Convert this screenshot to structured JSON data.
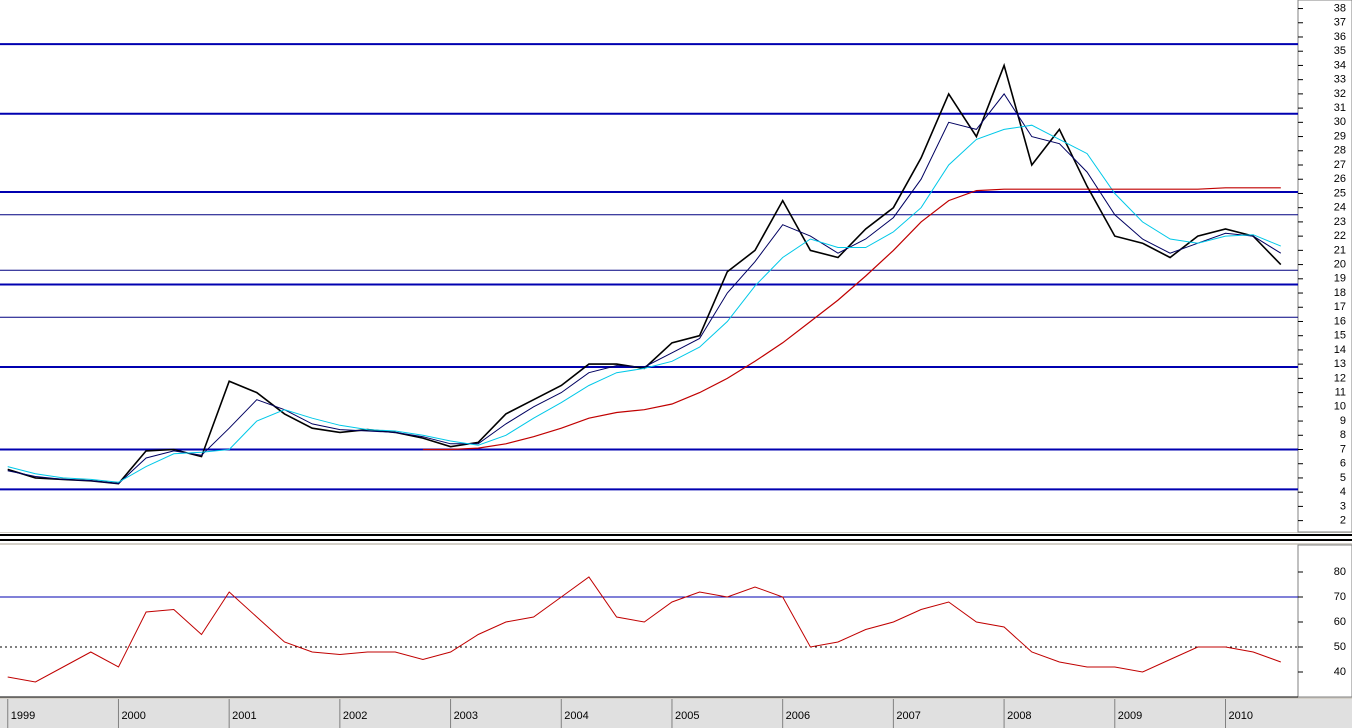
{
  "chart_data": [
    {
      "type": "line",
      "x": [
        1999.0,
        1999.25,
        1999.5,
        1999.75,
        2000.0,
        2000.25,
        2000.5,
        2000.75,
        2001.0,
        2001.25,
        2001.5,
        2001.75,
        2002.0,
        2002.25,
        2002.5,
        2002.75,
        2003.0,
        2003.25,
        2003.5,
        2003.75,
        2004.0,
        2004.25,
        2004.5,
        2004.75,
        2005.0,
        2005.25,
        2005.5,
        2005.75,
        2006.0,
        2006.25,
        2006.5,
        2006.75,
        2007.0,
        2007.25,
        2007.5,
        2007.75,
        2008.0,
        2008.25,
        2008.5,
        2008.75,
        2009.0,
        2009.25,
        2009.5,
        2009.75,
        2010.0,
        2010.25,
        2010.5
      ],
      "series": [
        {
          "color": "#000000",
          "width": 1.6,
          "values": [
            5.6,
            5.0,
            4.9,
            4.8,
            4.6,
            6.9,
            7.0,
            6.5,
            11.8,
            11.0,
            9.5,
            8.5,
            8.2,
            8.4,
            8.2,
            7.8,
            7.2,
            7.5,
            9.5,
            10.5,
            11.5,
            13.0,
            13.0,
            12.7,
            14.5,
            15.0,
            19.5,
            21.0,
            24.5,
            21.0,
            20.5,
            22.5,
            24.0,
            27.5,
            32.0,
            29.0,
            34.0,
            27.0,
            29.5,
            25.5,
            22.0,
            21.5,
            20.5,
            22.0,
            22.5,
            22.0,
            20.0
          ]
        },
        {
          "color": "#000060",
          "width": 1,
          "values": [
            5.5,
            5.1,
            4.9,
            4.8,
            4.6,
            6.4,
            6.9,
            6.6,
            8.5,
            10.5,
            9.8,
            8.8,
            8.4,
            8.3,
            8.2,
            7.9,
            7.4,
            7.4,
            8.8,
            10.0,
            11.0,
            12.4,
            12.9,
            12.8,
            13.8,
            14.8,
            18.0,
            20.2,
            22.8,
            22.0,
            20.8,
            21.8,
            23.3,
            26.0,
            30.0,
            29.5,
            32.0,
            29.0,
            28.5,
            26.5,
            23.5,
            21.8,
            20.8,
            21.5,
            22.2,
            22.0,
            20.8
          ]
        },
        {
          "color": "#00c8e8",
          "width": 1,
          "values": [
            5.8,
            5.3,
            5.0,
            4.9,
            4.7,
            5.8,
            6.7,
            6.8,
            7.0,
            9.0,
            9.8,
            9.2,
            8.7,
            8.4,
            8.3,
            8.0,
            7.6,
            7.3,
            8.0,
            9.2,
            10.3,
            11.5,
            12.4,
            12.7,
            13.2,
            14.2,
            16.0,
            18.5,
            20.5,
            21.8,
            21.2,
            21.2,
            22.3,
            24.0,
            27.0,
            28.8,
            29.5,
            29.8,
            28.8,
            27.8,
            25.0,
            23.0,
            21.8,
            21.5,
            22.0,
            22.1,
            21.3
          ]
        },
        {
          "color": "#c00000",
          "width": 1.2,
          "values": [
            null,
            null,
            null,
            null,
            null,
            null,
            null,
            null,
            null,
            null,
            null,
            null,
            null,
            null,
            null,
            7.0,
            7.0,
            7.1,
            7.4,
            7.9,
            8.5,
            9.2,
            9.6,
            9.8,
            10.2,
            11.0,
            12.0,
            13.2,
            14.5,
            16.0,
            17.5,
            19.2,
            21.0,
            23.0,
            24.5,
            25.2,
            25.3,
            25.3,
            25.3,
            25.3,
            25.3,
            25.3,
            25.3,
            25.3,
            25.4,
            25.4,
            25.4
          ]
        }
      ],
      "levels": [
        {
          "value": 35.5,
          "color": "#0000b0",
          "width": 2
        },
        {
          "value": 30.6,
          "color": "#0000b0",
          "width": 2
        },
        {
          "value": 25.1,
          "color": "#0000b0",
          "width": 2
        },
        {
          "value": 23.5,
          "color": "#000080",
          "width": 1
        },
        {
          "value": 19.6,
          "color": "#000080",
          "width": 1
        },
        {
          "value": 18.6,
          "color": "#0000b0",
          "width": 2
        },
        {
          "value": 16.3,
          "color": "#000080",
          "width": 1
        },
        {
          "value": 12.8,
          "color": "#0000b0",
          "width": 2
        },
        {
          "value": 7.0,
          "color": "#0000b0",
          "width": 2
        },
        {
          "value": 4.2,
          "color": "#0000b0",
          "width": 2
        }
      ],
      "xlim": [
        1998.93,
        2010.655
      ],
      "ylim": [
        1.2,
        38.6
      ],
      "yticks": [
        2,
        3,
        4,
        5,
        6,
        7,
        8,
        9,
        10,
        11,
        12,
        13,
        14,
        15,
        16,
        17,
        18,
        19,
        20,
        21,
        22,
        23,
        24,
        25,
        26,
        27,
        28,
        29,
        30,
        31,
        32,
        33,
        34,
        35,
        36,
        37,
        38
      ]
    },
    {
      "type": "line",
      "x": [
        1999.0,
        1999.25,
        1999.5,
        1999.75,
        2000.0,
        2000.25,
        2000.5,
        2000.75,
        2001.0,
        2001.25,
        2001.5,
        2001.75,
        2002.0,
        2002.25,
        2002.5,
        2002.75,
        2003.0,
        2003.25,
        2003.5,
        2003.75,
        2004.0,
        2004.25,
        2004.5,
        2004.75,
        2005.0,
        2005.25,
        2005.5,
        2005.75,
        2006.0,
        2006.25,
        2006.5,
        2006.75,
        2007.0,
        2007.25,
        2007.5,
        2007.75,
        2008.0,
        2008.25,
        2008.5,
        2008.75,
        2009.0,
        2009.25,
        2009.5,
        2009.75,
        2010.0,
        2010.25,
        2010.5
      ],
      "series": [
        {
          "color": "#c00000",
          "width": 1,
          "values": [
            38,
            36,
            42,
            48,
            42,
            64,
            65,
            55,
            72,
            62,
            52,
            48,
            47,
            48,
            48,
            45,
            48,
            55,
            60,
            62,
            70,
            78,
            62,
            60,
            68,
            72,
            70,
            74,
            70,
            50,
            52,
            57,
            60,
            65,
            68,
            60,
            58,
            48,
            44,
            42,
            42,
            40,
            45,
            50,
            50,
            48,
            44
          ]
        }
      ],
      "levels": [
        {
          "value": 70,
          "color": "#0000b0",
          "width": 1
        },
        {
          "value": 50,
          "color": "#000000",
          "width": 1,
          "dashed": true
        }
      ],
      "xlim": [
        1998.93,
        2010.655
      ],
      "ylim": [
        30,
        90.8
      ],
      "yticks": [
        40,
        50,
        60,
        70,
        80
      ],
      "xticks": [
        1999,
        2000,
        2001,
        2002,
        2003,
        2004,
        2005,
        2006,
        2007,
        2008,
        2009,
        2010
      ]
    }
  ]
}
